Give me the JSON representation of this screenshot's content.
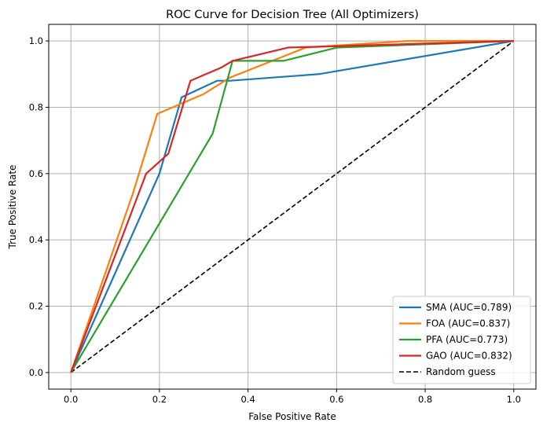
{
  "chart_data": {
    "type": "line",
    "title": "ROC Curve for Decision Tree (All Optimizers)",
    "xlabel": "False Positive Rate",
    "ylabel": "True Positive Rate",
    "xlim": [
      -0.05,
      1.05
    ],
    "ylim": [
      -0.05,
      1.05
    ],
    "xticks": [
      "0.0",
      "0.2",
      "0.4",
      "0.6",
      "0.8",
      "1.0"
    ],
    "yticks": [
      "0.0",
      "0.2",
      "0.4",
      "0.6",
      "0.8",
      "1.0"
    ],
    "xtick_values": [
      0,
      0.2,
      0.4,
      0.6,
      0.8,
      1.0
    ],
    "ytick_values": [
      0,
      0.2,
      0.4,
      0.6,
      0.8,
      1.0
    ],
    "grid": true,
    "legend_position": "lower-right",
    "series": [
      {
        "name": "SMA (AUC=0.789)",
        "color": "#1f77b4",
        "style": "solid",
        "x": [
          0,
          0.2,
          0.25,
          0.33,
          0.36,
          0.56,
          1.0
        ],
        "y": [
          0,
          0.6,
          0.83,
          0.88,
          0.88,
          0.9,
          1.0
        ]
      },
      {
        "name": "FOA (AUC=0.837)",
        "color": "#ff7f0e",
        "style": "solid",
        "x": [
          0,
          0.14,
          0.195,
          0.3,
          0.36,
          0.53,
          0.76,
          1.0
        ],
        "y": [
          0,
          0.54,
          0.78,
          0.84,
          0.89,
          0.98,
          1.0,
          1.0
        ]
      },
      {
        "name": "PFA (AUC=0.773)",
        "color": "#2ca02c",
        "style": "solid",
        "x": [
          0,
          0.32,
          0.365,
          0.48,
          0.6,
          1.0
        ],
        "y": [
          0,
          0.72,
          0.94,
          0.94,
          0.98,
          1.0
        ]
      },
      {
        "name": "GAO (AUC=0.832)",
        "color": "#d62728",
        "style": "solid",
        "x": [
          0,
          0.17,
          0.22,
          0.27,
          0.34,
          0.365,
          0.49,
          1.0
        ],
        "y": [
          0,
          0.6,
          0.66,
          0.88,
          0.92,
          0.94,
          0.98,
          1.0
        ]
      },
      {
        "name": "Random guess",
        "color": "#000000",
        "style": "dashed",
        "x": [
          0,
          1.0
        ],
        "y": [
          0,
          1.0
        ]
      }
    ]
  }
}
